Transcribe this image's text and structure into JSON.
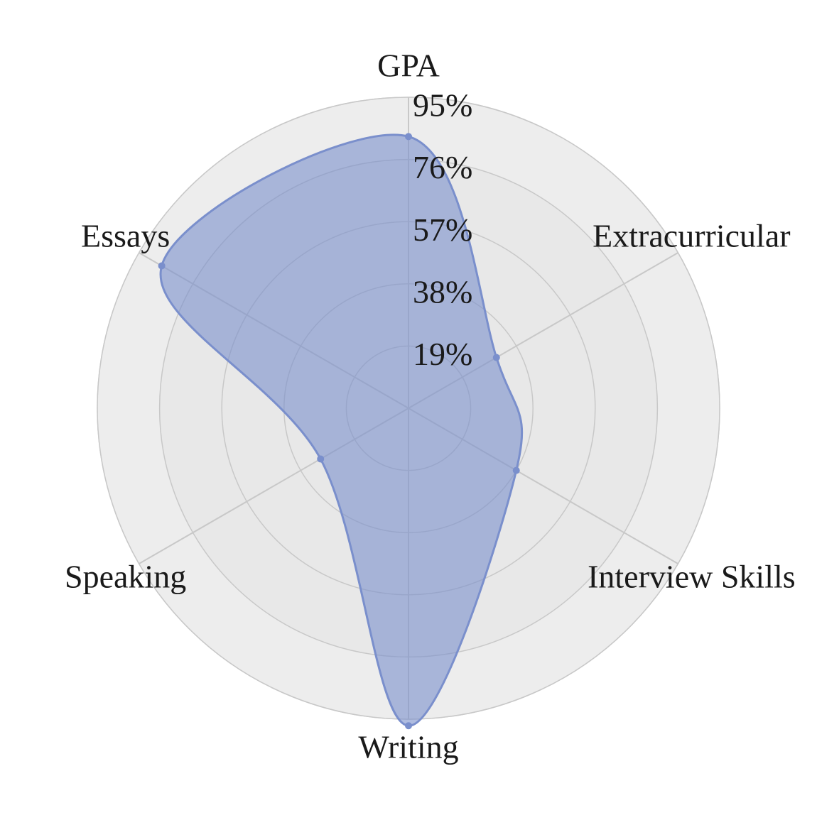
{
  "chart_data": {
    "type": "radar",
    "title": "",
    "axes": [
      "GPA",
      "Extracurricular",
      "Interview Skills",
      "Writing",
      "Speaking",
      "Essays"
    ],
    "series": [
      {
        "values": [
          83,
          31,
          38,
          97,
          31,
          87
        ],
        "color": "#7a8fcc"
      }
    ],
    "radial_ticks": [
      19,
      38,
      57,
      76,
      95
    ],
    "radial_tick_labels": [
      "19%",
      "38%",
      "57%",
      "76%",
      "95%"
    ],
    "rlim": [
      0,
      95
    ],
    "grid": true,
    "legend": "none",
    "colors": {
      "ring_outer": "#f4f4f4",
      "ring_inner": "#e6e6e6",
      "grid_line": "#c8c8c8",
      "fill": "#7a8fcc",
      "stroke": "#7a8fcc"
    }
  }
}
